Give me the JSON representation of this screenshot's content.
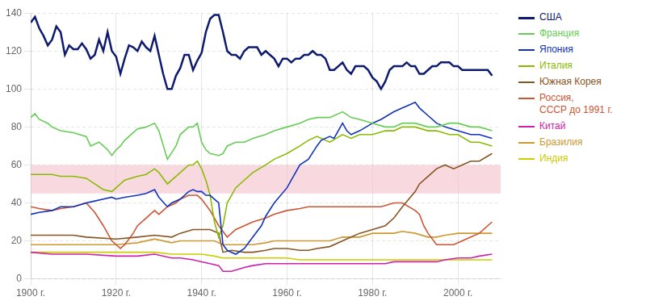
{
  "chart_data": {
    "type": "line",
    "xlim": [
      1900,
      2010
    ],
    "ylim": [
      0,
      140
    ],
    "xticks": [
      {
        "value": 1900,
        "label": "1900 г."
      },
      {
        "value": 1920,
        "label": "1920 г."
      },
      {
        "value": 1940,
        "label": "1940 г."
      },
      {
        "value": 1960,
        "label": "1960 г."
      },
      {
        "value": 1980,
        "label": "1980 г."
      },
      {
        "value": 2000,
        "label": "2000 г."
      }
    ],
    "yticks": [
      0,
      20,
      40,
      60,
      80,
      100,
      120,
      140
    ],
    "grid": true,
    "legend": "right",
    "band": {
      "y": [
        45,
        60
      ],
      "color": "#f5c0cc"
    },
    "series": [
      {
        "name": "США",
        "color": "#0d1a6e",
        "x": [
          1900,
          1901,
          1902,
          1903,
          1904,
          1905,
          1906,
          1907,
          1908,
          1909,
          1910,
          1911,
          1912,
          1913,
          1914,
          1915,
          1916,
          1917,
          1918,
          1919,
          1920,
          1921,
          1922,
          1923,
          1924,
          1925,
          1926,
          1927,
          1928,
          1929,
          1930,
          1931,
          1932,
          1933,
          1934,
          1935,
          1936,
          1937,
          1938,
          1939,
          1940,
          1941,
          1942,
          1943,
          1944,
          1945,
          1946,
          1947,
          1948,
          1949,
          1950,
          1951,
          1952,
          1953,
          1954,
          1955,
          1956,
          1957,
          1958,
          1959,
          1960,
          1961,
          1962,
          1963,
          1964,
          1965,
          1966,
          1967,
          1968,
          1969,
          1970,
          1971,
          1972,
          1973,
          1974,
          1975,
          1976,
          1977,
          1978,
          1979,
          1980,
          1981,
          1982,
          1983,
          1984,
          1985,
          1986,
          1987,
          1988,
          1989,
          1990,
          1991,
          1992,
          1993,
          1994,
          1995,
          1996,
          1997,
          1998,
          1999,
          2000,
          2001,
          2002,
          2003,
          2004,
          2005,
          2006,
          2007,
          2008
        ],
        "values": [
          135,
          138,
          132,
          128,
          123,
          126,
          133,
          130,
          118,
          123,
          121,
          121,
          124,
          121,
          116,
          118,
          126,
          120,
          130,
          120,
          117,
          108,
          116,
          123,
          122,
          120,
          125,
          122,
          120,
          128,
          118,
          108,
          100,
          100,
          107,
          111,
          118,
          118,
          110,
          115,
          119,
          130,
          137,
          139,
          139,
          130,
          120,
          118,
          118,
          116,
          120,
          122,
          122,
          122,
          118,
          120,
          118,
          116,
          112,
          116,
          116,
          114,
          116,
          116,
          118,
          118,
          120,
          118,
          118,
          116,
          110,
          110,
          112,
          114,
          110,
          108,
          112,
          112,
          112,
          110,
          106,
          104,
          100,
          104,
          110,
          112,
          112,
          112,
          114,
          112,
          112,
          108,
          108,
          110,
          112,
          112,
          114,
          114,
          114,
          112,
          112,
          110,
          110,
          110,
          110,
          110,
          110,
          110,
          107
        ]
      },
      {
        "name": "Франция",
        "color": "#66cc55",
        "x": [
          1900,
          1901,
          1902,
          1904,
          1905,
          1907,
          1910,
          1913,
          1914,
          1916,
          1918,
          1919,
          1920,
          1921,
          1922,
          1924,
          1925,
          1927,
          1929,
          1930,
          1932,
          1934,
          1935,
          1937,
          1938,
          1939,
          1940,
          1941,
          1942,
          1944,
          1945,
          1946,
          1948,
          1950,
          1952,
          1955,
          1957,
          1960,
          1963,
          1965,
          1967,
          1970,
          1973,
          1975,
          1977,
          1980,
          1983,
          1985,
          1987,
          1990,
          1993,
          1995,
          1998,
          2000,
          2003,
          2005,
          2008
        ],
        "values": [
          85,
          87,
          84,
          82,
          80,
          78,
          77,
          75,
          70,
          72,
          68,
          65,
          68,
          70,
          73,
          77,
          79,
          80,
          82,
          78,
          63,
          70,
          76,
          80,
          80,
          82,
          72,
          68,
          66,
          65,
          66,
          70,
          72,
          72,
          74,
          76,
          78,
          80,
          82,
          84,
          85,
          85,
          88,
          85,
          84,
          82,
          80,
          80,
          82,
          82,
          80,
          80,
          82,
          82,
          80,
          80,
          78
        ]
      },
      {
        "name": "Япония",
        "color": "#1133bb",
        "x": [
          1900,
          1902,
          1905,
          1907,
          1910,
          1913,
          1915,
          1917,
          1919,
          1920,
          1922,
          1925,
          1927,
          1929,
          1930,
          1932,
          1933,
          1935,
          1937,
          1938,
          1939,
          1940,
          1941,
          1942,
          1943,
          1944,
          1945,
          1946,
          1947,
          1948,
          1950,
          1952,
          1954,
          1955,
          1957,
          1960,
          1963,
          1965,
          1967,
          1968,
          1970,
          1971,
          1973,
          1974,
          1975,
          1977,
          1980,
          1982,
          1985,
          1987,
          1988,
          1990,
          1991,
          1993,
          1995,
          1997,
          2000,
          2003,
          2005,
          2008
        ],
        "values": [
          34,
          35,
          36,
          38,
          38,
          40,
          41,
          42,
          43,
          42,
          43,
          44,
          45,
          47,
          43,
          38,
          40,
          42,
          46,
          47,
          46,
          46,
          44,
          44,
          42,
          40,
          18,
          15,
          14,
          13,
          16,
          22,
          28,
          33,
          40,
          48,
          60,
          63,
          70,
          73,
          75,
          74,
          82,
          78,
          76,
          78,
          82,
          84,
          88,
          90,
          91,
          93,
          90,
          86,
          82,
          80,
          78,
          76,
          76,
          74
        ]
      },
      {
        "name": "Италия",
        "color": "#88bb00",
        "x": [
          1900,
          1902,
          1905,
          1907,
          1910,
          1913,
          1915,
          1917,
          1919,
          1920,
          1922,
          1925,
          1927,
          1929,
          1930,
          1932,
          1934,
          1935,
          1937,
          1938,
          1939,
          1940,
          1941,
          1942,
          1943,
          1944,
          1945,
          1946,
          1948,
          1950,
          1952,
          1955,
          1957,
          1960,
          1963,
          1965,
          1967,
          1970,
          1973,
          1975,
          1977,
          1980,
          1983,
          1985,
          1987,
          1990,
          1993,
          1995,
          1998,
          2000,
          2003,
          2005,
          2008
        ],
        "values": [
          55,
          55,
          55,
          54,
          54,
          53,
          50,
          47,
          46,
          48,
          52,
          54,
          55,
          58,
          56,
          50,
          54,
          56,
          60,
          60,
          62,
          58,
          52,
          44,
          30,
          22,
          28,
          40,
          48,
          52,
          56,
          60,
          63,
          66,
          70,
          73,
          75,
          72,
          76,
          74,
          76,
          76,
          78,
          78,
          80,
          80,
          78,
          78,
          76,
          76,
          72,
          72,
          70
        ]
      },
      {
        "name": "Южная Корея",
        "color": "#885522",
        "x": [
          1900,
          1905,
          1910,
          1913,
          1920,
          1925,
          1929,
          1933,
          1935,
          1938,
          1940,
          1942,
          1944,
          1945,
          1947,
          1950,
          1952,
          1955,
          1957,
          1960,
          1963,
          1965,
          1967,
          1970,
          1973,
          1975,
          1977,
          1980,
          1983,
          1985,
          1987,
          1990,
          1991,
          1993,
          1995,
          1997,
          1999,
          2001,
          2003,
          2005,
          2008
        ],
        "values": [
          23,
          23,
          23,
          22,
          21,
          22,
          23,
          22,
          24,
          26,
          26,
          26,
          24,
          14,
          15,
          14,
          14,
          15,
          16,
          16,
          15,
          15,
          16,
          17,
          20,
          22,
          24,
          26,
          28,
          32,
          38,
          46,
          50,
          54,
          58,
          60,
          58,
          60,
          62,
          62,
          66
        ]
      },
      {
        "name": "Россия,\nСССР до 1991 г.",
        "color": "#cc5533",
        "x": [
          1900,
          1902,
          1905,
          1907,
          1910,
          1913,
          1915,
          1917,
          1919,
          1920,
          1921,
          1922,
          1924,
          1925,
          1927,
          1929,
          1930,
          1932,
          1934,
          1935,
          1937,
          1938,
          1939,
          1940,
          1942,
          1944,
          1946,
          1947,
          1948,
          1950,
          1952,
          1955,
          1957,
          1960,
          1963,
          1965,
          1967,
          1970,
          1973,
          1975,
          1977,
          1980,
          1982,
          1985,
          1987,
          1990,
          1991,
          1992,
          1993,
          1995,
          1997,
          1999,
          2001,
          2003,
          2005,
          2008
        ],
        "values": [
          38,
          37,
          36,
          37,
          38,
          40,
          35,
          28,
          20,
          18,
          16,
          18,
          24,
          28,
          32,
          36,
          34,
          38,
          40,
          42,
          44,
          44,
          44,
          42,
          36,
          28,
          22,
          24,
          26,
          28,
          30,
          32,
          34,
          36,
          37,
          38,
          38,
          38,
          38,
          38,
          38,
          38,
          38,
          40,
          40,
          36,
          34,
          28,
          24,
          18,
          18,
          18,
          20,
          22,
          24,
          30
        ]
      },
      {
        "name": "Китай",
        "color": "#cc22aa",
        "x": [
          1900,
          1905,
          1910,
          1913,
          1920,
          1925,
          1929,
          1933,
          1935,
          1938,
          1940,
          1942,
          1944,
          1945,
          1947,
          1950,
          1952,
          1955,
          1957,
          1960,
          1963,
          1965,
          1967,
          1970,
          1973,
          1975,
          1977,
          1980,
          1983,
          1985,
          1987,
          1990,
          1993,
          1995,
          1997,
          2000,
          2003,
          2005,
          2008
        ],
        "values": [
          14,
          13,
          13,
          13,
          12,
          12,
          13,
          11,
          11,
          10,
          9,
          8,
          7,
          4,
          4,
          6,
          7,
          8,
          8,
          8,
          8,
          8,
          8,
          8,
          8,
          8,
          8,
          8,
          8,
          9,
          9,
          9,
          9,
          9,
          10,
          11,
          11,
          12,
          13
        ]
      },
      {
        "name": "Бразилия",
        "color": "#cc9933",
        "x": [
          1900,
          1905,
          1910,
          1913,
          1920,
          1925,
          1929,
          1933,
          1935,
          1938,
          1940,
          1943,
          1945,
          1948,
          1950,
          1952,
          1955,
          1957,
          1960,
          1963,
          1965,
          1967,
          1970,
          1973,
          1975,
          1977,
          1980,
          1983,
          1985,
          1987,
          1990,
          1993,
          1995,
          1997,
          2000,
          2003,
          2005,
          2008
        ],
        "values": [
          18,
          18,
          18,
          18,
          18,
          19,
          21,
          19,
          20,
          20,
          20,
          20,
          18,
          18,
          18,
          18,
          19,
          20,
          20,
          20,
          20,
          20,
          20,
          22,
          22,
          22,
          24,
          24,
          24,
          25,
          24,
          22,
          22,
          23,
          24,
          24,
          24,
          24
        ]
      },
      {
        "name": "Индия",
        "color": "#cccc00",
        "x": [
          1900,
          1905,
          1910,
          1913,
          1920,
          1925,
          1929,
          1933,
          1935,
          1938,
          1940,
          1943,
          1945,
          1948,
          1950,
          1952,
          1955,
          1957,
          1960,
          1963,
          1965,
          1967,
          1970,
          1973,
          1975,
          1977,
          1980,
          1983,
          1985,
          1987,
          1990,
          1993,
          1995,
          1997,
          2000,
          2003,
          2005,
          2008
        ],
        "values": [
          14,
          14,
          14,
          14,
          14,
          14,
          14,
          13,
          13,
          13,
          13,
          12,
          11,
          11,
          11,
          11,
          11,
          11,
          11,
          10,
          10,
          10,
          10,
          10,
          10,
          10,
          10,
          10,
          10,
          10,
          10,
          10,
          10,
          10,
          10,
          10,
          10,
          10
        ]
      }
    ]
  }
}
